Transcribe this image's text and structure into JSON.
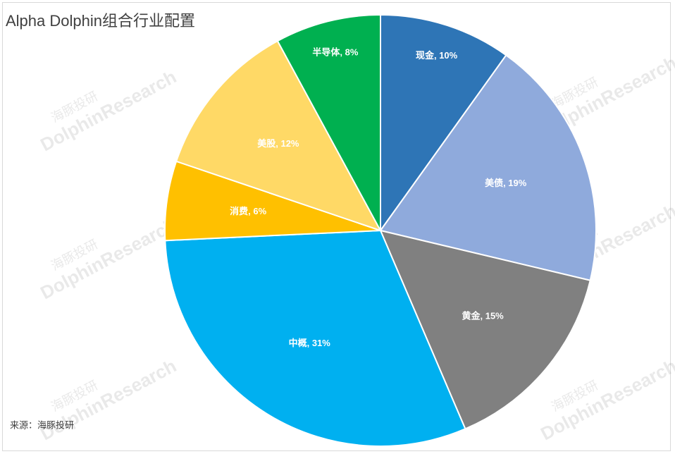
{
  "chart_data": {
    "type": "pie",
    "title": "Alpha Dolphin组合行业配置",
    "values": [
      10,
      19,
      15,
      31,
      6,
      12,
      8
    ],
    "value_labels": [
      "现金, 10%",
      "美债, 19%",
      "黄金, 15%",
      "中概, 31%",
      "消费, 6%",
      "美股, 12%",
      "半导体, 8%"
    ],
    "colors": [
      "#2e75b6",
      "#8faadc",
      "#808080",
      "#00b0f0",
      "#ffc000",
      "#ffd966",
      "#00b050"
    ],
    "source": "来源：海豚投研",
    "watermark": {
      "cn": "海豚投研",
      "en": "DolphinResearch"
    }
  }
}
